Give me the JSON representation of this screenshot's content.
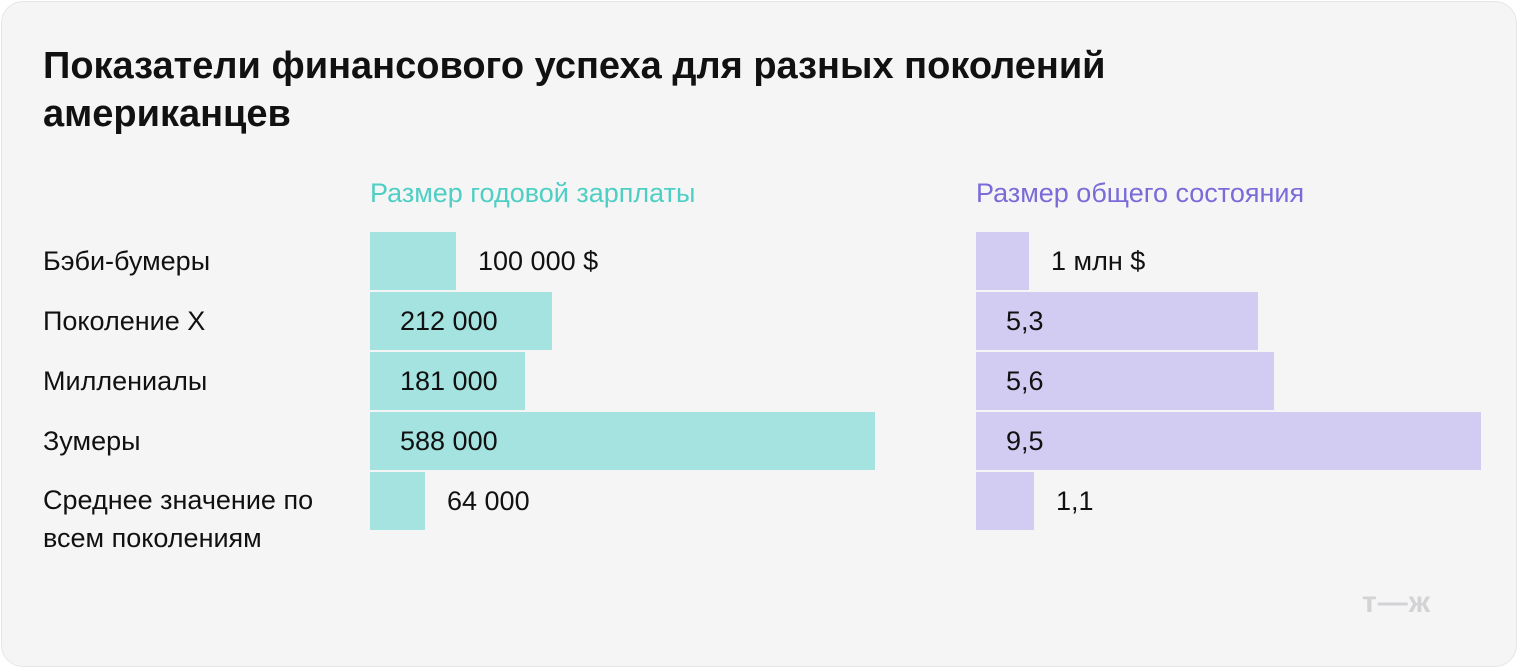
{
  "title": "Показатели финансового успеха для разных поколений американцев",
  "logo_text": "т—ж",
  "colors": {
    "salary": "#a5e3e0",
    "salary_text": "#4fcfc4",
    "wealth": "#d3ccf2",
    "wealth_text": "#7a6bd8"
  },
  "chart_data": {
    "type": "bar",
    "orientation": "horizontal",
    "categories": [
      "Бэби-бумеры",
      "Поколение X",
      "Миллениалы",
      "Зумеры",
      "Среднее значение по всем поколениям"
    ],
    "series": [
      {
        "name": "Размер годовой зарплаты",
        "values": [
          100000,
          212000,
          181000,
          588000,
          64000
        ],
        "labels": [
          "100 000 $",
          "212 000",
          "181 000",
          "588 000",
          "64 000"
        ]
      },
      {
        "name": "Размер общего состояния",
        "values": [
          1,
          5.3,
          5.6,
          9.5,
          1.1
        ],
        "labels": [
          "1 млн $",
          "5,3",
          "5,6",
          "9,5",
          "1,1"
        ]
      }
    ]
  }
}
